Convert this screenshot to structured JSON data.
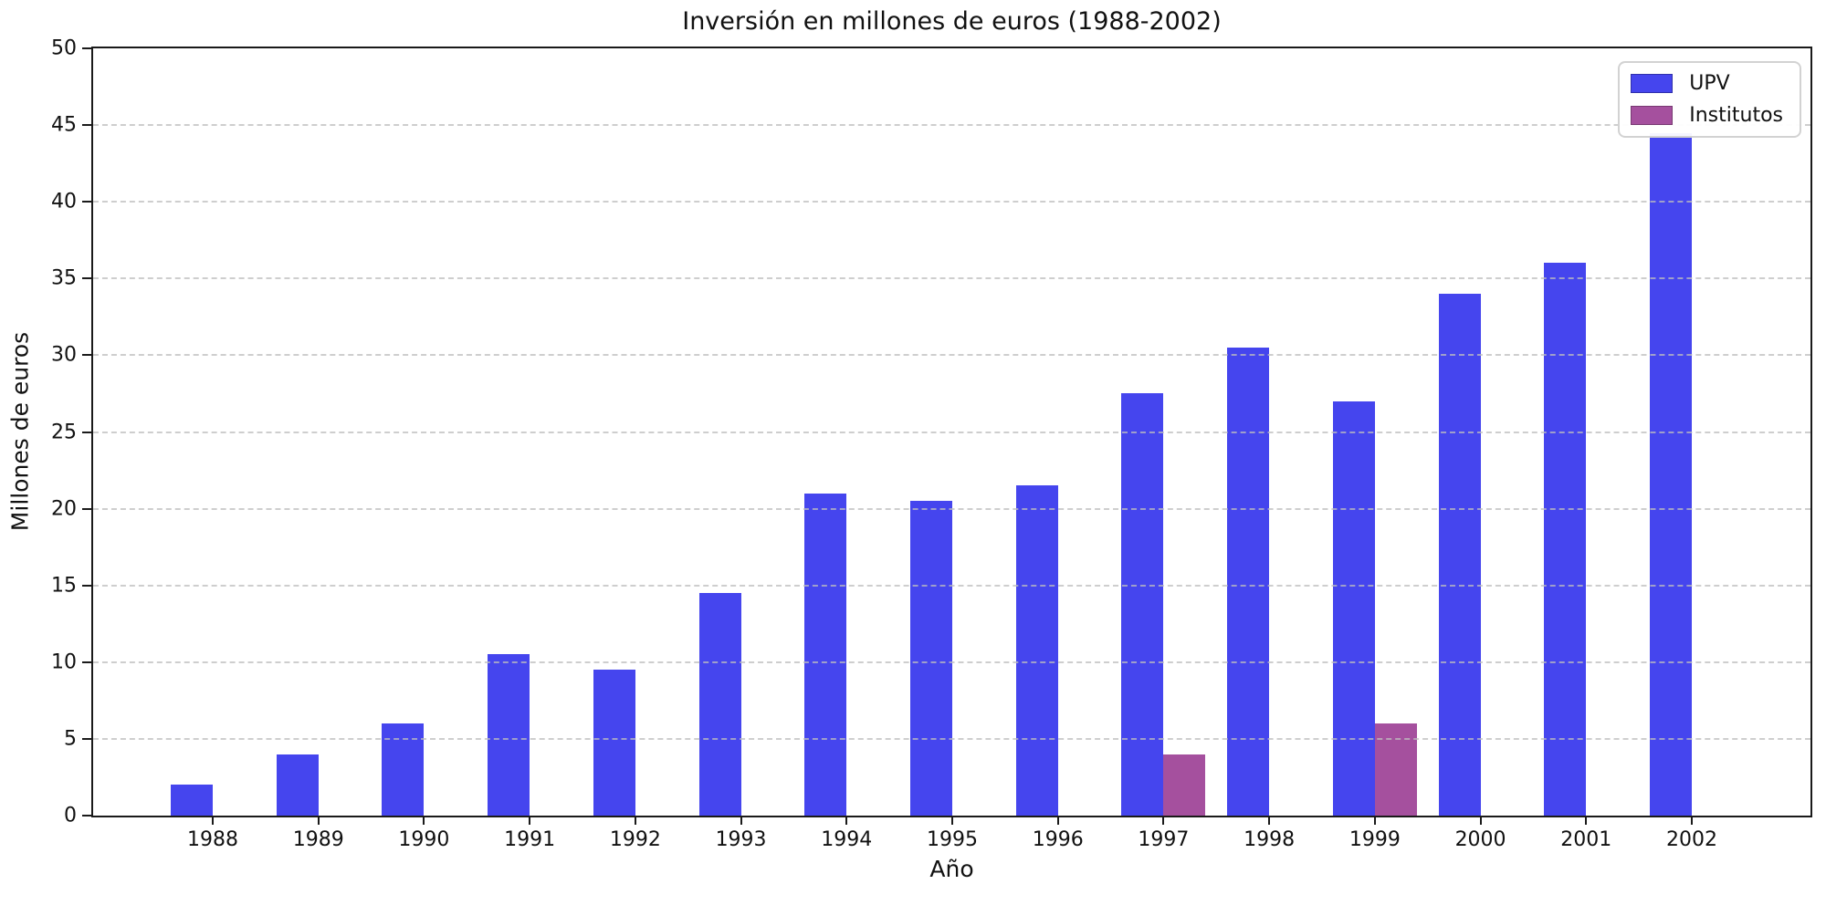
{
  "chart_data": {
    "type": "bar",
    "title": "Inversión en millones de euros (1988-2002)",
    "xlabel": "Año",
    "ylabel": "Millones de euros",
    "categories": [
      "1988",
      "1989",
      "1990",
      "1991",
      "1992",
      "1993",
      "1994",
      "1995",
      "1996",
      "1997",
      "1998",
      "1999",
      "2000",
      "2001",
      "2002"
    ],
    "series": [
      {
        "name": "UPV",
        "color": "#4545ee",
        "values": [
          2,
          4,
          6,
          10.5,
          9.5,
          14.5,
          21,
          20.5,
          21.5,
          27.5,
          30.5,
          27,
          34,
          36,
          44.5
        ]
      },
      {
        "name": "Institutos",
        "color": "#a5509e",
        "values": [
          0,
          0,
          0,
          0,
          0,
          0,
          0,
          0,
          0,
          4,
          0,
          6,
          0,
          0,
          0
        ]
      }
    ],
    "ylim": [
      0,
      50
    ],
    "ytick_step": 5,
    "grid": "horizontal-dashed",
    "legend_position": "top-right",
    "colors": {
      "axis": "#1a1a1a",
      "gridline": "#c8c8c8",
      "background": "#ffffff"
    }
  }
}
